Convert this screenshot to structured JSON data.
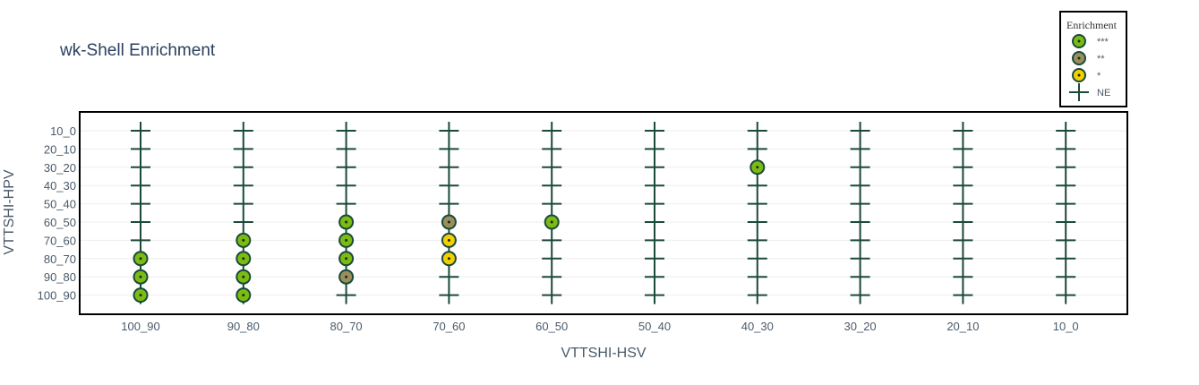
{
  "chart_data": {
    "type": "scatter",
    "title": "wk-Shell Enrichment",
    "xlabel": "VTTSHI-HSV",
    "ylabel": "VTTSHI-HPV",
    "x_categories": [
      "100_90",
      "90_80",
      "80_70",
      "70_60",
      "60_50",
      "50_40",
      "40_30",
      "30_20",
      "20_10",
      "10_0"
    ],
    "y_categories": [
      "10_0",
      "20_10",
      "30_20",
      "40_30",
      "50_40",
      "60_50",
      "70_60",
      "80_70",
      "90_80",
      "100_90"
    ],
    "grid": true,
    "legend": {
      "title": "Enrichment",
      "placement": "top-right",
      "entries": [
        {
          "label": "***",
          "symbol": "circle",
          "fill": "#7cbb12"
        },
        {
          "label": "**",
          "symbol": "circle",
          "fill": "#9a8f5c"
        },
        {
          "label": "*",
          "symbol": "circle",
          "fill": "#f5d000"
        },
        {
          "label": "NE",
          "symbol": "cross",
          "fill": "#1a4a3a"
        }
      ]
    },
    "points": [
      {
        "x": "100_90",
        "y": "10_0",
        "level": "NE"
      },
      {
        "x": "100_90",
        "y": "20_10",
        "level": "NE"
      },
      {
        "x": "100_90",
        "y": "30_20",
        "level": "NE"
      },
      {
        "x": "100_90",
        "y": "40_30",
        "level": "NE"
      },
      {
        "x": "100_90",
        "y": "50_40",
        "level": "NE"
      },
      {
        "x": "100_90",
        "y": "60_50",
        "level": "NE"
      },
      {
        "x": "100_90",
        "y": "70_60",
        "level": "NE"
      },
      {
        "x": "100_90",
        "y": "80_70",
        "level": "***"
      },
      {
        "x": "100_90",
        "y": "90_80",
        "level": "***"
      },
      {
        "x": "100_90",
        "y": "100_90",
        "level": "***"
      },
      {
        "x": "90_80",
        "y": "10_0",
        "level": "NE"
      },
      {
        "x": "90_80",
        "y": "20_10",
        "level": "NE"
      },
      {
        "x": "90_80",
        "y": "30_20",
        "level": "NE"
      },
      {
        "x": "90_80",
        "y": "40_30",
        "level": "NE"
      },
      {
        "x": "90_80",
        "y": "50_40",
        "level": "NE"
      },
      {
        "x": "90_80",
        "y": "60_50",
        "level": "NE"
      },
      {
        "x": "90_80",
        "y": "70_60",
        "level": "***"
      },
      {
        "x": "90_80",
        "y": "80_70",
        "level": "***"
      },
      {
        "x": "90_80",
        "y": "90_80",
        "level": "***"
      },
      {
        "x": "90_80",
        "y": "100_90",
        "level": "***"
      },
      {
        "x": "80_70",
        "y": "10_0",
        "level": "NE"
      },
      {
        "x": "80_70",
        "y": "20_10",
        "level": "NE"
      },
      {
        "x": "80_70",
        "y": "30_20",
        "level": "NE"
      },
      {
        "x": "80_70",
        "y": "40_30",
        "level": "NE"
      },
      {
        "x": "80_70",
        "y": "50_40",
        "level": "NE"
      },
      {
        "x": "80_70",
        "y": "60_50",
        "level": "***"
      },
      {
        "x": "80_70",
        "y": "70_60",
        "level": "***"
      },
      {
        "x": "80_70",
        "y": "80_70",
        "level": "***"
      },
      {
        "x": "80_70",
        "y": "90_80",
        "level": "**"
      },
      {
        "x": "80_70",
        "y": "100_90",
        "level": "NE"
      },
      {
        "x": "70_60",
        "y": "10_0",
        "level": "NE"
      },
      {
        "x": "70_60",
        "y": "20_10",
        "level": "NE"
      },
      {
        "x": "70_60",
        "y": "30_20",
        "level": "NE"
      },
      {
        "x": "70_60",
        "y": "40_30",
        "level": "NE"
      },
      {
        "x": "70_60",
        "y": "50_40",
        "level": "NE"
      },
      {
        "x": "70_60",
        "y": "60_50",
        "level": "**"
      },
      {
        "x": "70_60",
        "y": "70_60",
        "level": "*"
      },
      {
        "x": "70_60",
        "y": "80_70",
        "level": "*"
      },
      {
        "x": "70_60",
        "y": "90_80",
        "level": "NE"
      },
      {
        "x": "70_60",
        "y": "100_90",
        "level": "NE"
      },
      {
        "x": "60_50",
        "y": "10_0",
        "level": "NE"
      },
      {
        "x": "60_50",
        "y": "20_10",
        "level": "NE"
      },
      {
        "x": "60_50",
        "y": "30_20",
        "level": "NE"
      },
      {
        "x": "60_50",
        "y": "40_30",
        "level": "NE"
      },
      {
        "x": "60_50",
        "y": "50_40",
        "level": "NE"
      },
      {
        "x": "60_50",
        "y": "60_50",
        "level": "***"
      },
      {
        "x": "60_50",
        "y": "70_60",
        "level": "NE"
      },
      {
        "x": "60_50",
        "y": "80_70",
        "level": "NE"
      },
      {
        "x": "60_50",
        "y": "90_80",
        "level": "NE"
      },
      {
        "x": "60_50",
        "y": "100_90",
        "level": "NE"
      },
      {
        "x": "50_40",
        "y": "10_0",
        "level": "NE"
      },
      {
        "x": "50_40",
        "y": "20_10",
        "level": "NE"
      },
      {
        "x": "50_40",
        "y": "30_20",
        "level": "NE"
      },
      {
        "x": "50_40",
        "y": "40_30",
        "level": "NE"
      },
      {
        "x": "50_40",
        "y": "50_40",
        "level": "NE"
      },
      {
        "x": "50_40",
        "y": "60_50",
        "level": "NE"
      },
      {
        "x": "50_40",
        "y": "70_60",
        "level": "NE"
      },
      {
        "x": "50_40",
        "y": "80_70",
        "level": "NE"
      },
      {
        "x": "50_40",
        "y": "90_80",
        "level": "NE"
      },
      {
        "x": "50_40",
        "y": "100_90",
        "level": "NE"
      },
      {
        "x": "40_30",
        "y": "10_0",
        "level": "NE"
      },
      {
        "x": "40_30",
        "y": "20_10",
        "level": "NE"
      },
      {
        "x": "40_30",
        "y": "30_20",
        "level": "***"
      },
      {
        "x": "40_30",
        "y": "40_30",
        "level": "NE"
      },
      {
        "x": "40_30",
        "y": "50_40",
        "level": "NE"
      },
      {
        "x": "40_30",
        "y": "60_50",
        "level": "NE"
      },
      {
        "x": "40_30",
        "y": "70_60",
        "level": "NE"
      },
      {
        "x": "40_30",
        "y": "80_70",
        "level": "NE"
      },
      {
        "x": "40_30",
        "y": "90_80",
        "level": "NE"
      },
      {
        "x": "40_30",
        "y": "100_90",
        "level": "NE"
      },
      {
        "x": "30_20",
        "y": "10_0",
        "level": "NE"
      },
      {
        "x": "30_20",
        "y": "20_10",
        "level": "NE"
      },
      {
        "x": "30_20",
        "y": "30_20",
        "level": "NE"
      },
      {
        "x": "30_20",
        "y": "40_30",
        "level": "NE"
      },
      {
        "x": "30_20",
        "y": "50_40",
        "level": "NE"
      },
      {
        "x": "30_20",
        "y": "60_50",
        "level": "NE"
      },
      {
        "x": "30_20",
        "y": "70_60",
        "level": "NE"
      },
      {
        "x": "30_20",
        "y": "80_70",
        "level": "NE"
      },
      {
        "x": "30_20",
        "y": "90_80",
        "level": "NE"
      },
      {
        "x": "30_20",
        "y": "100_90",
        "level": "NE"
      },
      {
        "x": "20_10",
        "y": "10_0",
        "level": "NE"
      },
      {
        "x": "20_10",
        "y": "20_10",
        "level": "NE"
      },
      {
        "x": "20_10",
        "y": "30_20",
        "level": "NE"
      },
      {
        "x": "20_10",
        "y": "40_30",
        "level": "NE"
      },
      {
        "x": "20_10",
        "y": "50_40",
        "level": "NE"
      },
      {
        "x": "20_10",
        "y": "60_50",
        "level": "NE"
      },
      {
        "x": "20_10",
        "y": "70_60",
        "level": "NE"
      },
      {
        "x": "20_10",
        "y": "80_70",
        "level": "NE"
      },
      {
        "x": "20_10",
        "y": "90_80",
        "level": "NE"
      },
      {
        "x": "20_10",
        "y": "100_90",
        "level": "NE"
      },
      {
        "x": "10_0",
        "y": "10_0",
        "level": "NE"
      },
      {
        "x": "10_0",
        "y": "20_10",
        "level": "NE"
      },
      {
        "x": "10_0",
        "y": "30_20",
        "level": "NE"
      },
      {
        "x": "10_0",
        "y": "40_30",
        "level": "NE"
      },
      {
        "x": "10_0",
        "y": "50_40",
        "level": "NE"
      },
      {
        "x": "10_0",
        "y": "60_50",
        "level": "NE"
      },
      {
        "x": "10_0",
        "y": "70_60",
        "level": "NE"
      },
      {
        "x": "10_0",
        "y": "80_70",
        "level": "NE"
      },
      {
        "x": "10_0",
        "y": "90_80",
        "level": "NE"
      },
      {
        "x": "10_0",
        "y": "100_90",
        "level": "NE"
      }
    ]
  }
}
